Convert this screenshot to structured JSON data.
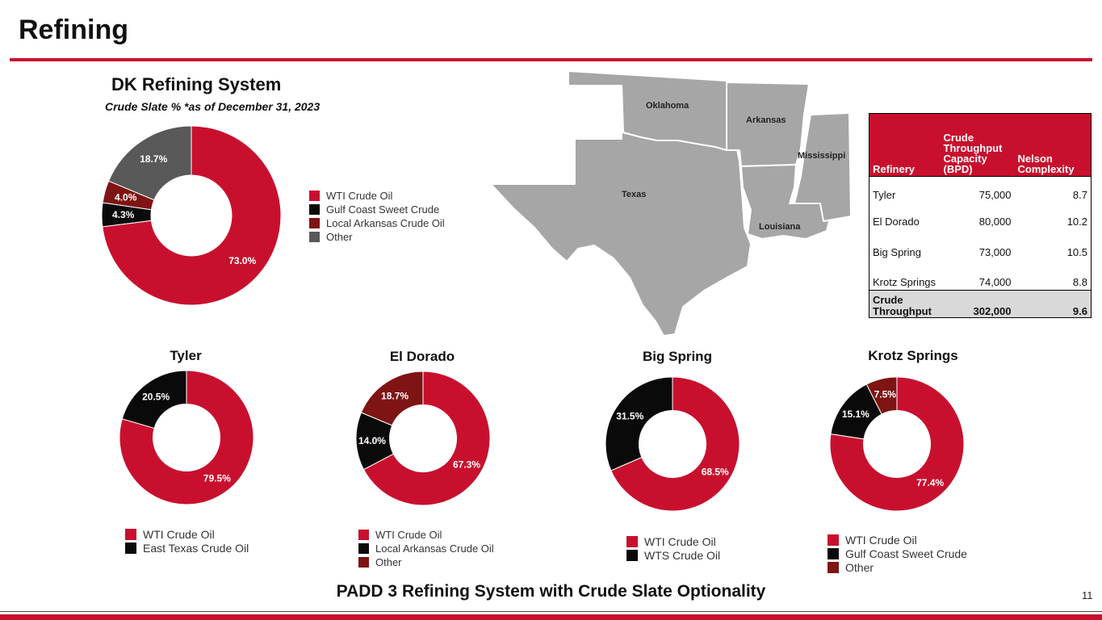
{
  "page": {
    "title": "Refining",
    "subheading": "DK Refining System",
    "subcaption": "Crude Slate % *as of December 31, 2023",
    "footer": "PADD 3 Refining System with Crude Slate Optionality",
    "page_number": "11"
  },
  "colors": {
    "red": "#c8102e",
    "black": "#0a0a0a",
    "darkred": "#7f1414",
    "gray": "#595959",
    "map_fill": "#a6a6a6"
  },
  "map": {
    "states": [
      "Oklahoma",
      "Arkansas",
      "Mississippi",
      "Texas",
      "Louisiana"
    ]
  },
  "table": {
    "headers": [
      "Refinery",
      "Crude Throughput Capacity (BPD)",
      "Nelson Complexity"
    ],
    "rows": [
      {
        "refinery": "Tyler",
        "capacity": "75,000",
        "complexity": "8.7"
      },
      {
        "refinery": "El Dorado",
        "capacity": "80,000",
        "complexity": "10.2"
      },
      {
        "refinery": "Big Spring",
        "capacity": "73,000",
        "complexity": "10.5"
      },
      {
        "refinery": "Krotz Springs",
        "capacity": "74,000",
        "complexity": "8.8"
      }
    ],
    "total": {
      "label": "Crude Throughput",
      "capacity": "302,000",
      "complexity": "9.6"
    }
  },
  "chart_data": [
    {
      "type": "pie",
      "title": "DK Refining System",
      "subtitle": "Crude Slate % *as of December 31, 2023",
      "categories": [
        "WTI Crude Oil",
        "Gulf Coast Sweet Crude",
        "Local Arkansas Crude Oil",
        "Other"
      ],
      "values": [
        73.0,
        4.3,
        4.0,
        18.7
      ],
      "labels": [
        "73.0%",
        "4.3%",
        "4.0%",
        "18.7%"
      ],
      "colors": [
        "#c8102e",
        "#0a0a0a",
        "#7f1414",
        "#595959"
      ]
    },
    {
      "type": "pie",
      "title": "Tyler",
      "categories": [
        "WTI Crude Oil",
        "East Texas Crude Oil"
      ],
      "values": [
        79.5,
        20.5
      ],
      "labels": [
        "79.5%",
        "20.5%"
      ],
      "colors": [
        "#c8102e",
        "#0a0a0a"
      ]
    },
    {
      "type": "pie",
      "title": "El Dorado",
      "categories": [
        "WTI Crude Oil",
        "Local Arkansas Crude Oil",
        "Other"
      ],
      "values": [
        67.3,
        14.0,
        18.7
      ],
      "labels": [
        "67.3%",
        "14.0%",
        "18.7%"
      ],
      "colors": [
        "#c8102e",
        "#0a0a0a",
        "#7f1414"
      ]
    },
    {
      "type": "pie",
      "title": "Big Spring",
      "categories": [
        "WTI Crude Oil",
        "WTS Crude Oil"
      ],
      "values": [
        68.5,
        31.5
      ],
      "labels": [
        "68.5%",
        "31.5%"
      ],
      "colors": [
        "#c8102e",
        "#0a0a0a"
      ]
    },
    {
      "type": "pie",
      "title": "Krotz Springs",
      "categories": [
        "WTI Crude Oil",
        "Gulf Coast Sweet Crude",
        "Other"
      ],
      "values": [
        77.4,
        15.1,
        7.5
      ],
      "labels": [
        "77.4%",
        "15.1%",
        "7.5%"
      ],
      "colors": [
        "#c8102e",
        "#0a0a0a",
        "#7f1414"
      ]
    }
  ]
}
